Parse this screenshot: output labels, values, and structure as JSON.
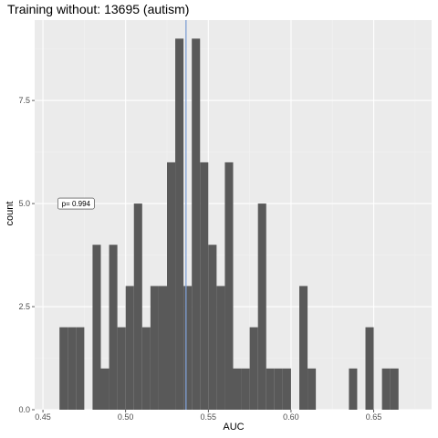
{
  "chart_data": {
    "type": "bar",
    "title": "Training without: 13695 (autism)",
    "xlabel": "AUC",
    "ylabel": "count",
    "xlim": [
      0.445,
      0.685
    ],
    "ylim": [
      0,
      9.45
    ],
    "xticks": [
      0.45,
      0.5,
      0.55,
      0.6,
      0.65
    ],
    "xtick_labels": [
      "0.45",
      "0.50",
      "0.55",
      "0.60",
      "0.65"
    ],
    "yticks": [
      0,
      2.5,
      5,
      7.5
    ],
    "ytick_labels": [
      "0.0",
      "2.5",
      "5.0",
      "7.5"
    ],
    "bin_width": 0.005,
    "bin_starts": [
      0.46,
      0.465,
      0.47,
      0.475,
      0.48,
      0.485,
      0.49,
      0.495,
      0.5,
      0.505,
      0.51,
      0.515,
      0.52,
      0.525,
      0.53,
      0.535,
      0.54,
      0.545,
      0.55,
      0.555,
      0.56,
      0.565,
      0.57,
      0.575,
      0.58,
      0.585,
      0.59,
      0.595,
      0.6,
      0.605,
      0.61,
      0.615,
      0.62,
      0.625,
      0.63,
      0.635,
      0.64,
      0.645,
      0.65,
      0.655,
      0.66,
      0.665,
      0.67,
      0.675
    ],
    "values": [
      2,
      2,
      2,
      0,
      4,
      1,
      4,
      2,
      3,
      5,
      2,
      3,
      3,
      6,
      9,
      3,
      9,
      6,
      4,
      3,
      6,
      1,
      1,
      2,
      5,
      1,
      1,
      1,
      0,
      3,
      1,
      0,
      0,
      0,
      0,
      1,
      0,
      2,
      0,
      1,
      1,
      0,
      0,
      0
    ],
    "reference_line_x": 0.5365,
    "annotation": {
      "text": "p= 0.994",
      "x": 0.47,
      "y": 5.0
    },
    "grid": true,
    "colors": {
      "panel": "#ebebeb",
      "grid_major": "#ffffff",
      "grid_minor": "#f2f2f2",
      "bar": "#595959",
      "reference_line": "#7f9fd4"
    }
  }
}
